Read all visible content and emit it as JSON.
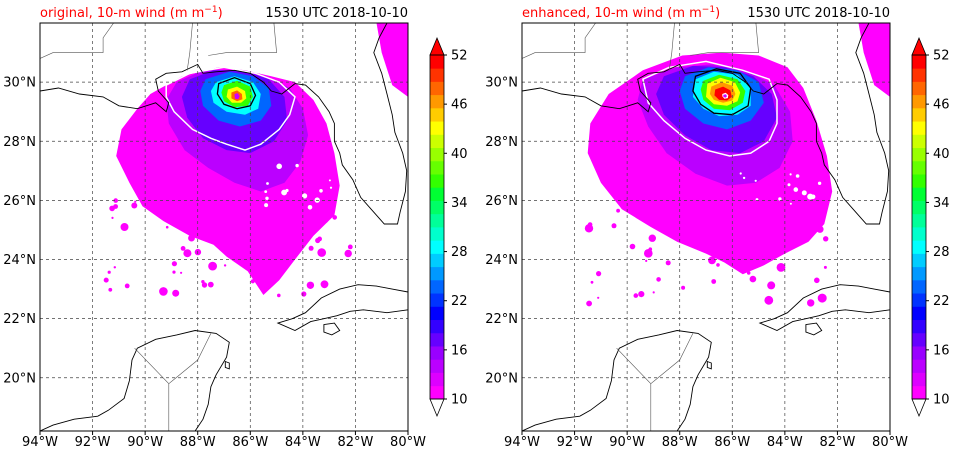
{
  "chart_data": [
    {
      "type": "heatmap",
      "title": "original, 10-m wind (m m$^{-1}$)",
      "title_prefix": "original, 10-m wind (m m",
      "title_exp": "−1",
      "title_suffix": ")",
      "time_label": "1530 UTC 2018-10-10",
      "x_ticks": [
        "94°W",
        "92°W",
        "90°W",
        "88°W",
        "86°W",
        "84°W",
        "82°W",
        "80°W"
      ],
      "y_ticks": [
        "30°N",
        "28°N",
        "26°N",
        "24°N",
        "22°N",
        "20°N"
      ],
      "xlim": [
        -94,
        -80
      ],
      "ylim": [
        18.2,
        32.0
      ],
      "colorbar_ticks": [
        "10",
        "16",
        "22",
        "28",
        "34",
        "40",
        "46",
        "52"
      ],
      "colorbar_range": [
        10,
        52
      ],
      "colorbar_colors": [
        "#ff00ff",
        "#dd00ff",
        "#bb00ff",
        "#9900ff",
        "#6600ff",
        "#3300ff",
        "#0000ff",
        "#0033ff",
        "#0066ff",
        "#0099ff",
        "#00ccff",
        "#00ffff",
        "#00ffcc",
        "#00ff99",
        "#00ff66",
        "#00ff33",
        "#33ff00",
        "#66ff00",
        "#99ff00",
        "#ccff00",
        "#ffff00",
        "#ffcc00",
        "#ff9900",
        "#ff6600",
        "#ff3300",
        "#ff0000"
      ],
      "grid": true,
      "storm_center": [
        -86.5,
        29.5
      ],
      "peak_wind": 40
    },
    {
      "type": "heatmap",
      "title": "enhanced, 10-m wind (m m$^{-1}$)",
      "title_prefix": "enhanced, 10-m wind (m m",
      "title_exp": "−1",
      "title_suffix": ")",
      "time_label": "1530 UTC 2018-10-10",
      "x_ticks": [
        "94°W",
        "92°W",
        "90°W",
        "88°W",
        "86°W",
        "84°W",
        "82°W",
        "80°W"
      ],
      "y_ticks": [
        "30°N",
        "28°N",
        "26°N",
        "24°N",
        "22°N",
        "20°N"
      ],
      "xlim": [
        -94,
        -80
      ],
      "ylim": [
        18.2,
        32.0
      ],
      "colorbar_ticks": [
        "10",
        "16",
        "22",
        "28",
        "34",
        "40",
        "46",
        "52"
      ],
      "colorbar_range": [
        10,
        52
      ],
      "colorbar_colors": [
        "#ff00ff",
        "#dd00ff",
        "#bb00ff",
        "#9900ff",
        "#6600ff",
        "#3300ff",
        "#0000ff",
        "#0033ff",
        "#0066ff",
        "#0099ff",
        "#00ccff",
        "#00ffff",
        "#00ffcc",
        "#00ff99",
        "#00ff66",
        "#00ff33",
        "#33ff00",
        "#66ff00",
        "#99ff00",
        "#ccff00",
        "#ffff00",
        "#ffcc00",
        "#ff9900",
        "#ff6600",
        "#ff3300",
        "#ff0000"
      ],
      "grid": true,
      "storm_center": [
        -86.2,
        29.5
      ],
      "peak_wind": 52
    }
  ]
}
